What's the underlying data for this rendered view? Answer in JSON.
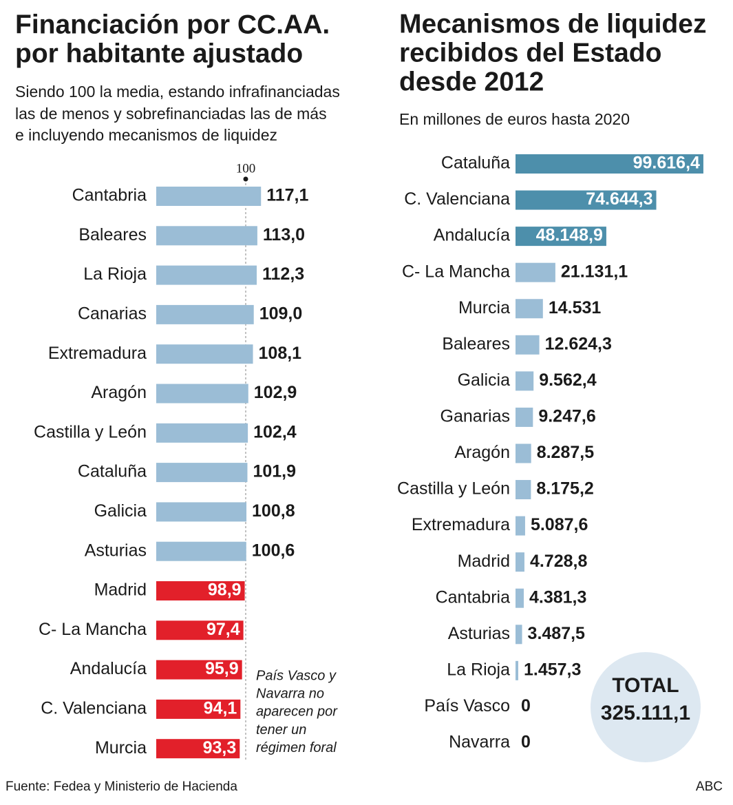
{
  "chart_data": [
    {
      "type": "barh",
      "title": [
        "Financiación por CC.AA.",
        "por habitante ajustado"
      ],
      "subtitle": [
        "Siendo 100 la media, estando infrafinanciadas",
        "las de menos y sobrefinanciadas las de más",
        "e incluyendo mecanismos de liquidez"
      ],
      "categories": [
        "Cantabria",
        "Baleares",
        "La Rioja",
        "Canarias",
        "Extremadura",
        "Aragón",
        "Castilla y León",
        "Cataluña",
        "Galicia",
        "Asturias",
        "Madrid",
        "C- La Mancha",
        "Andalucía",
        "C. Valenciana",
        "Murcia"
      ],
      "values": [
        117.1,
        113.0,
        112.3,
        109.0,
        108.1,
        102.9,
        102.4,
        101.9,
        100.8,
        100.6,
        98.9,
        97.4,
        95.9,
        94.1,
        93.3
      ],
      "value_labels": [
        "117,1",
        "113,0",
        "112,3",
        "109,0",
        "108,1",
        "102,9",
        "102,4",
        "101,9",
        "100,8",
        "100,6",
        "98,9",
        "97,4",
        "95,9",
        "94,1",
        "93,3"
      ],
      "xlim": [
        0,
        120
      ],
      "reference_line": 100,
      "color_above": "#9bbdd6",
      "color_below": "#e2202a",
      "annotation": [
        "País Vasco y",
        "Navarra no",
        "aparecen por",
        "tener un",
        "régimen foral"
      ]
    },
    {
      "type": "barh",
      "title": [
        "Mecanismos de liquidez",
        "recibidos del Estado",
        "desde 2012"
      ],
      "subtitle": [
        "En millones de euros hasta 2020"
      ],
      "categories": [
        "Cataluña",
        "C. Valenciana",
        "Andalucía",
        "C- La Mancha",
        "Murcia",
        "Baleares",
        "Galicia",
        "Ganarias",
        "Aragón",
        "Castilla y León",
        "Extremadura",
        "Madrid",
        "Cantabria",
        "Asturias",
        "La Rioja",
        "País Vasco",
        "Navarra"
      ],
      "values": [
        99616.4,
        74644.3,
        48148.9,
        21131.1,
        14531,
        12624.3,
        9562.4,
        9247.6,
        8287.5,
        8175.2,
        5087.6,
        4728.8,
        4381.3,
        3487.5,
        1457.3,
        0,
        0
      ],
      "value_labels": [
        "99.616,4",
        "74.644,3",
        "48.148,9",
        "21.131,1",
        "14.531",
        "12.624,3",
        "9.562,4",
        "9.247,6",
        "8.287,5",
        "8.175,2",
        "5.087,6",
        "4.728,8",
        "4.381,3",
        "3.487,5",
        "1.457,3",
        "0",
        "0"
      ],
      "xlim": [
        0,
        100000
      ],
      "colors": [
        "#4d8fab",
        "#4d8fab",
        "#4d8fab",
        "#9bbdd6",
        "#9bbdd6",
        "#9bbdd6",
        "#9bbdd6",
        "#9bbdd6",
        "#9bbdd6",
        "#9bbdd6",
        "#9bbdd6",
        "#9bbdd6",
        "#9bbdd6",
        "#9bbdd6",
        "#9bbdd6",
        "#9bbdd6",
        "#9bbdd6"
      ],
      "total_title": "TOTAL",
      "total": {
        "value": 325111.1,
        "label": "325.111,1"
      },
      "total_color": "#dde8f1"
    }
  ],
  "source": "Fuente:  Fedea y Ministerio de Hacienda",
  "credit": "ABC"
}
